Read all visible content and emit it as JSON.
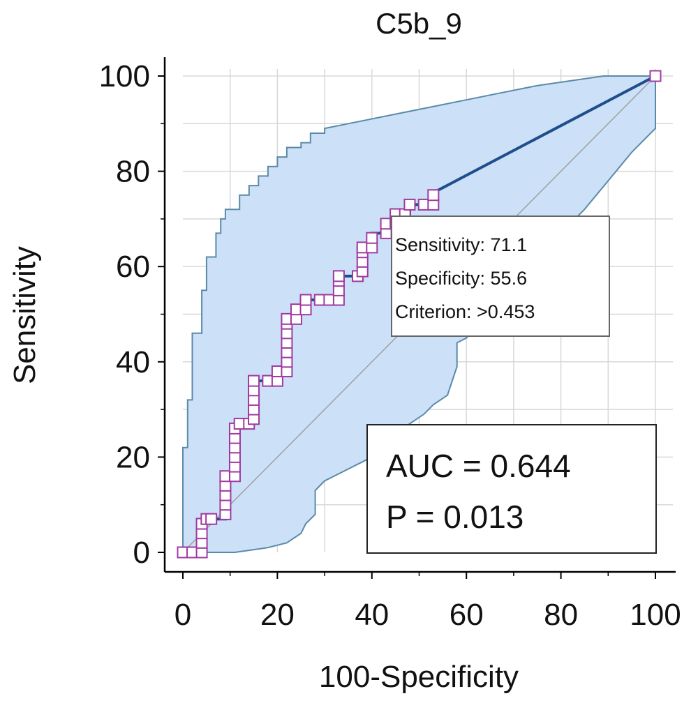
{
  "chart_data": {
    "type": "line",
    "title": "C5b_9",
    "xlabel": "100-Specificity",
    "ylabel": "Sensitivity",
    "xlim": [
      0,
      100
    ],
    "ylim": [
      0,
      100
    ],
    "xticks": [
      0,
      20,
      40,
      60,
      80,
      100
    ],
    "yticks": [
      0,
      20,
      40,
      60,
      80,
      100
    ],
    "grid": true,
    "diagonal_reference": [
      [
        0,
        0
      ],
      [
        100,
        100
      ]
    ],
    "confidence_band": {
      "upper": [
        [
          0,
          0
        ],
        [
          0,
          22
        ],
        [
          1,
          22
        ],
        [
          1,
          32
        ],
        [
          2,
          32
        ],
        [
          2,
          46
        ],
        [
          4,
          46
        ],
        [
          4,
          55
        ],
        [
          5,
          55
        ],
        [
          5,
          62
        ],
        [
          7,
          62
        ],
        [
          7,
          67
        ],
        [
          8,
          67
        ],
        [
          8,
          70
        ],
        [
          9,
          70
        ],
        [
          9,
          72
        ],
        [
          12,
          72
        ],
        [
          12,
          75
        ],
        [
          14,
          75
        ],
        [
          14,
          77
        ],
        [
          16,
          77
        ],
        [
          16,
          79
        ],
        [
          18,
          79
        ],
        [
          18,
          81
        ],
        [
          20,
          81
        ],
        [
          20,
          83
        ],
        [
          22,
          83
        ],
        [
          22,
          85
        ],
        [
          25,
          85
        ],
        [
          25,
          86
        ],
        [
          27,
          86
        ],
        [
          27,
          88
        ],
        [
          30,
          88
        ],
        [
          30,
          89
        ],
        [
          35,
          90
        ],
        [
          45,
          92
        ],
        [
          55,
          94
        ],
        [
          65,
          96
        ],
        [
          75,
          98
        ],
        [
          89,
          100
        ],
        [
          100,
          100
        ]
      ],
      "lower": [
        [
          100,
          100
        ],
        [
          100,
          89
        ],
        [
          95,
          84
        ],
        [
          90,
          78
        ],
        [
          85,
          72
        ],
        [
          82,
          69
        ],
        [
          80,
          65
        ],
        [
          76,
          64
        ],
        [
          73,
          61
        ],
        [
          70,
          56
        ],
        [
          67,
          51
        ],
        [
          62,
          47
        ],
        [
          60,
          45
        ],
        [
          58,
          44
        ],
        [
          58,
          39
        ],
        [
          57,
          36
        ],
        [
          56,
          33
        ],
        [
          53,
          31
        ],
        [
          51,
          29
        ],
        [
          48,
          27
        ],
        [
          45,
          25
        ],
        [
          42,
          22
        ],
        [
          40,
          20
        ],
        [
          38,
          19
        ],
        [
          34,
          17
        ],
        [
          30,
          15
        ],
        [
          28,
          13
        ],
        [
          28,
          8
        ],
        [
          26,
          6
        ],
        [
          25,
          4
        ],
        [
          22,
          2
        ],
        [
          18,
          1
        ],
        [
          11,
          0
        ],
        [
          0,
          0
        ]
      ]
    },
    "roc_steps": [
      [
        0,
        0
      ],
      [
        4,
        0
      ],
      [
        4,
        7
      ],
      [
        9,
        7
      ],
      [
        9,
        16
      ],
      [
        11,
        16
      ],
      [
        11,
        27
      ],
      [
        15,
        27
      ],
      [
        15,
        36
      ],
      [
        20,
        36
      ],
      [
        20,
        38
      ],
      [
        22,
        38
      ],
      [
        22,
        49
      ],
      [
        24,
        49
      ],
      [
        24,
        51
      ],
      [
        26,
        51
      ],
      [
        26,
        53
      ],
      [
        29,
        53
      ],
      [
        33,
        53
      ],
      [
        33,
        58
      ],
      [
        38,
        58
      ],
      [
        38,
        64
      ],
      [
        40,
        64
      ],
      [
        40,
        67
      ],
      [
        43,
        67
      ],
      [
        43,
        69
      ],
      [
        45,
        69
      ],
      [
        45,
        71.1
      ],
      [
        48,
        71.1
      ],
      [
        48,
        73
      ],
      [
        53,
        73
      ],
      [
        53,
        75.5
      ],
      [
        100,
        100
      ]
    ],
    "markers": [
      [
        0,
        0
      ],
      [
        2,
        0
      ],
      [
        4,
        0
      ],
      [
        4,
        2
      ],
      [
        4,
        4
      ],
      [
        4,
        6
      ],
      [
        5,
        7
      ],
      [
        6,
        7
      ],
      [
        9,
        8
      ],
      [
        9,
        10
      ],
      [
        9,
        12
      ],
      [
        9,
        14
      ],
      [
        9,
        16
      ],
      [
        11,
        16
      ],
      [
        11,
        18
      ],
      [
        11,
        20
      ],
      [
        11,
        22
      ],
      [
        11,
        24
      ],
      [
        11,
        26
      ],
      [
        12,
        27
      ],
      [
        14,
        27
      ],
      [
        15,
        28
      ],
      [
        15,
        30
      ],
      [
        15,
        32
      ],
      [
        15,
        34
      ],
      [
        15,
        36
      ],
      [
        18,
        36
      ],
      [
        20,
        36
      ],
      [
        20,
        38
      ],
      [
        22,
        38
      ],
      [
        22,
        40
      ],
      [
        22,
        42
      ],
      [
        22,
        44
      ],
      [
        22,
        46
      ],
      [
        22,
        48
      ],
      [
        22,
        49
      ],
      [
        24,
        49
      ],
      [
        24,
        51
      ],
      [
        26,
        51
      ],
      [
        26,
        53
      ],
      [
        29,
        53
      ],
      [
        31,
        53
      ],
      [
        33,
        53
      ],
      [
        33,
        55
      ],
      [
        33,
        57
      ],
      [
        33,
        58
      ],
      [
        37,
        58
      ],
      [
        38,
        59
      ],
      [
        38,
        61
      ],
      [
        38,
        63
      ],
      [
        38,
        64
      ],
      [
        40,
        64
      ],
      [
        40,
        66
      ],
      [
        43,
        67
      ],
      [
        43,
        69
      ],
      [
        45,
        69
      ],
      [
        45,
        71
      ],
      [
        47,
        71
      ],
      [
        48,
        73
      ],
      [
        51,
        73
      ],
      [
        53,
        73
      ],
      [
        53,
        75
      ],
      [
        100,
        100
      ]
    ],
    "tooltip": {
      "sensitivity_text": "Sensitivity: 71.1",
      "specificity_text": "Specificity: 55.6",
      "criterion_text": "Criterion: >0.453"
    },
    "stats": {
      "auc_text": "AUC = 0.644",
      "p_text": "P = 0.013"
    },
    "colors": {
      "band_fill": "#cce0f7",
      "band_edge": "#5a8aa8",
      "roc_line": "#1f4e8c",
      "marker": "#a03aa0",
      "diagonal": "#a0a0a0",
      "grid": "#d8d8d8"
    }
  }
}
